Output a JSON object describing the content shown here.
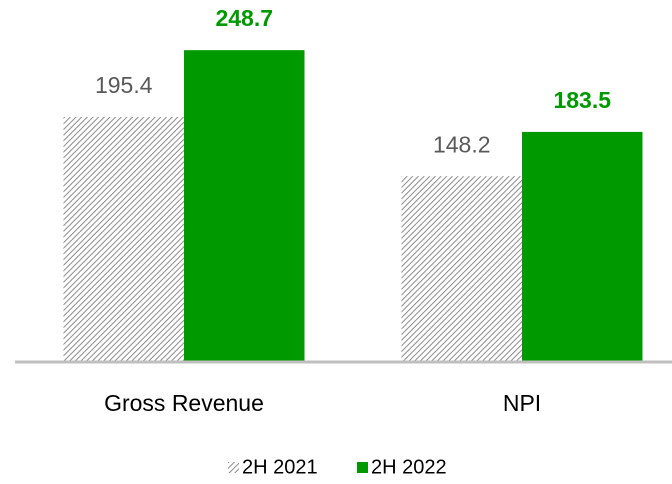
{
  "chart_data": {
    "type": "bar",
    "categories": [
      "Gross Revenue",
      "NPI"
    ],
    "series": [
      {
        "name": "2H 2021",
        "color": "#8c8c8c",
        "hatch": true,
        "values": [
          195.4,
          148.2
        ]
      },
      {
        "name": "2H 2022",
        "color": "#009a00",
        "hatch": false,
        "values": [
          248.7,
          183.5
        ]
      }
    ],
    "ylim": [
      0,
      260
    ],
    "legend": "bottom"
  }
}
